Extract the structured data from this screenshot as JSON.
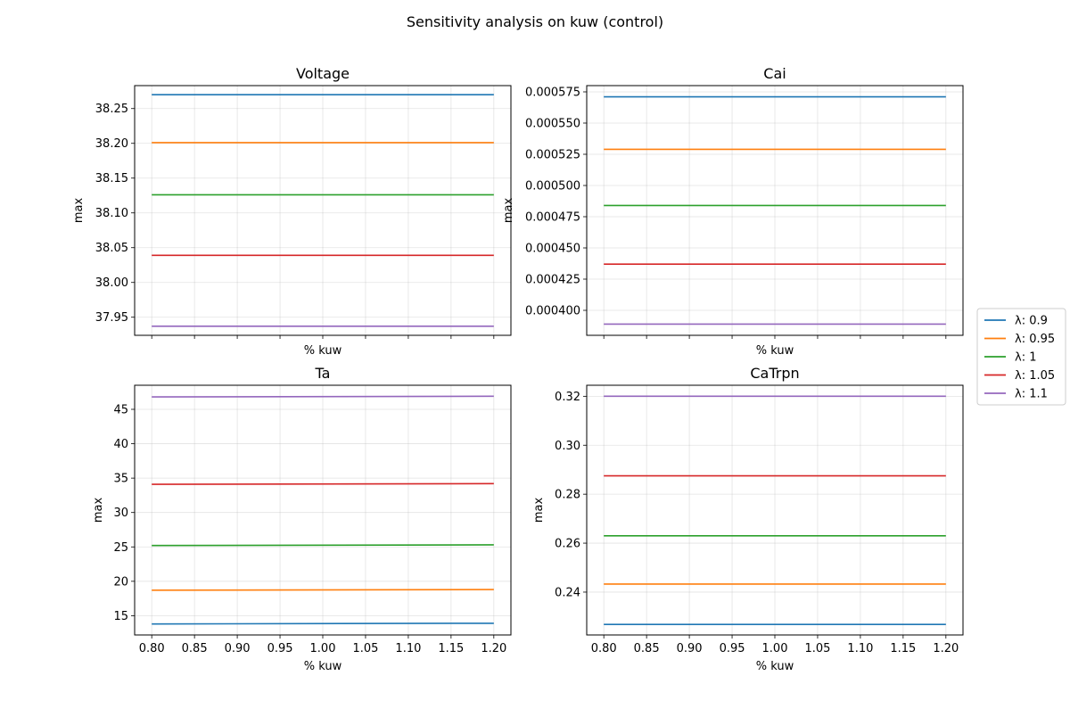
{
  "figure": {
    "suptitle": "Sensitivity analysis on kuw (control)"
  },
  "legend": {
    "placement": "right-center",
    "entries": [
      "λ: 0.9",
      "λ: 0.95",
      "λ: 1",
      "λ: 1.05",
      "λ: 1.1"
    ]
  },
  "colors": {
    "λ: 0.9": "#1f77b4",
    "λ: 0.95": "#ff7f0e",
    "λ: 1": "#2ca02c",
    "λ: 1.05": "#d62728",
    "λ: 1.1": "#9467bd"
  },
  "chart_data": [
    {
      "type": "line",
      "title": "Voltage",
      "xlabel": "% kuw",
      "ylabel": "max",
      "x": [
        0.8,
        1.2
      ],
      "xlim": [
        0.78,
        1.22
      ],
      "xticks": [
        0.8,
        0.85,
        0.9,
        0.95,
        1.0,
        1.05,
        1.1,
        1.15,
        1.2
      ],
      "show_xticklabels": false,
      "ylim": [
        37.924,
        38.283
      ],
      "yticks": [
        37.95,
        38.0,
        38.05,
        38.1,
        38.15,
        38.2,
        38.25
      ],
      "ytick_labels": [
        "37.95",
        "38.00",
        "38.05",
        "38.10",
        "38.15",
        "38.20",
        "38.25"
      ],
      "grid": true,
      "series": [
        {
          "name": "λ: 0.9",
          "values": [
            38.27,
            38.27
          ]
        },
        {
          "name": "λ: 0.95",
          "values": [
            38.201,
            38.201
          ]
        },
        {
          "name": "λ: 1",
          "values": [
            38.126,
            38.126
          ]
        },
        {
          "name": "λ: 1.05",
          "values": [
            38.039,
            38.039
          ]
        },
        {
          "name": "λ: 1.1",
          "values": [
            37.937,
            37.937
          ]
        }
      ]
    },
    {
      "type": "line",
      "title": "Cai",
      "xlabel": "% kuw",
      "ylabel": "max",
      "x": [
        0.8,
        1.2
      ],
      "xlim": [
        0.78,
        1.22
      ],
      "xticks": [
        0.8,
        0.85,
        0.9,
        0.95,
        1.0,
        1.05,
        1.1,
        1.15,
        1.2
      ],
      "show_xticklabels": false,
      "ylim": [
        0.00038,
        0.00058
      ],
      "yticks": [
        0.0004,
        0.000425,
        0.00045,
        0.000475,
        0.0005,
        0.000525,
        0.00055,
        0.000575
      ],
      "ytick_labels": [
        "0.000400",
        "0.000425",
        "0.000450",
        "0.000475",
        "0.000500",
        "0.000525",
        "0.000550",
        "0.000575"
      ],
      "grid": true,
      "series": [
        {
          "name": "λ: 0.9",
          "values": [
            0.000571,
            0.000571
          ]
        },
        {
          "name": "λ: 0.95",
          "values": [
            0.000529,
            0.000529
          ]
        },
        {
          "name": "λ: 1",
          "values": [
            0.000484,
            0.000484
          ]
        },
        {
          "name": "λ: 1.05",
          "values": [
            0.000437,
            0.000437
          ]
        },
        {
          "name": "λ: 1.1",
          "values": [
            0.000389,
            0.000389
          ]
        }
      ]
    },
    {
      "type": "line",
      "title": "Ta",
      "xlabel": "% kuw",
      "ylabel": "max",
      "x": [
        0.8,
        1.2
      ],
      "xlim": [
        0.78,
        1.22
      ],
      "xticks": [
        0.8,
        0.85,
        0.9,
        0.95,
        1.0,
        1.05,
        1.1,
        1.15,
        1.2
      ],
      "xtick_labels": [
        "0.80",
        "0.85",
        "0.90",
        "0.95",
        "1.00",
        "1.05",
        "1.10",
        "1.15",
        "1.20"
      ],
      "show_xticklabels": true,
      "ylim": [
        12.2,
        48.5
      ],
      "yticks": [
        15,
        20,
        25,
        30,
        35,
        40,
        45
      ],
      "ytick_labels": [
        "15",
        "20",
        "25",
        "30",
        "35",
        "40",
        "45"
      ],
      "grid": true,
      "series": [
        {
          "name": "λ: 0.9",
          "values": [
            13.8,
            13.9
          ]
        },
        {
          "name": "λ: 0.95",
          "values": [
            18.7,
            18.8
          ]
        },
        {
          "name": "λ: 1",
          "values": [
            25.2,
            25.3
          ]
        },
        {
          "name": "λ: 1.05",
          "values": [
            34.1,
            34.2
          ]
        },
        {
          "name": "λ: 1.1",
          "values": [
            46.8,
            46.9
          ]
        }
      ]
    },
    {
      "type": "line",
      "title": "CaTrpn",
      "xlabel": "% kuw",
      "ylabel": "max",
      "x": [
        0.8,
        1.2
      ],
      "xlim": [
        0.78,
        1.22
      ],
      "xticks": [
        0.8,
        0.85,
        0.9,
        0.95,
        1.0,
        1.05,
        1.1,
        1.15,
        1.2
      ],
      "xtick_labels": [
        "0.80",
        "0.85",
        "0.90",
        "0.95",
        "1.00",
        "1.05",
        "1.10",
        "1.15",
        "1.20"
      ],
      "show_xticklabels": true,
      "ylim": [
        0.2225,
        0.3245
      ],
      "yticks": [
        0.24,
        0.26,
        0.28,
        0.3,
        0.32
      ],
      "ytick_labels": [
        "0.24",
        "0.26",
        "0.28",
        "0.30",
        "0.32"
      ],
      "grid": true,
      "series": [
        {
          "name": "λ: 0.9",
          "values": [
            0.2268,
            0.2268
          ]
        },
        {
          "name": "λ: 0.95",
          "values": [
            0.2433,
            0.2433
          ]
        },
        {
          "name": "λ: 1",
          "values": [
            0.263,
            0.263
          ]
        },
        {
          "name": "λ: 1.05",
          "values": [
            0.2875,
            0.2875
          ]
        },
        {
          "name": "λ: 1.1",
          "values": [
            0.32,
            0.32
          ]
        }
      ]
    }
  ]
}
